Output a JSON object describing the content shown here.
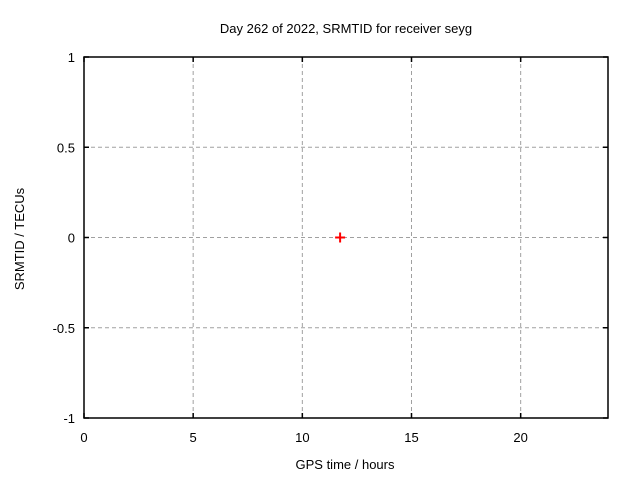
{
  "chart_data": {
    "type": "scatter",
    "title": "Day 262 of 2022, SRMTID for receiver seyg",
    "xlabel": "GPS time / hours",
    "ylabel": "SRMTID / TECUs",
    "xlim": [
      0,
      24
    ],
    "ylim": [
      -1,
      1
    ],
    "xticks": {
      "values": [
        0,
        5,
        10,
        15,
        20
      ],
      "labels": [
        "0",
        "5",
        "10",
        "15",
        "20"
      ]
    },
    "yticks": {
      "values": [
        -1,
        -0.5,
        0,
        0.5,
        1
      ],
      "labels": [
        "-1",
        "-0.5",
        "0",
        "0.5",
        "1"
      ]
    },
    "grid": true,
    "legend": "none",
    "series": [
      {
        "name": "SRMTID",
        "marker": "plus",
        "color": "#ff0000",
        "points": [
          {
            "x": 11.73,
            "y": 0.0
          }
        ]
      }
    ],
    "colors": {
      "background": "#ffffff",
      "border": "#000000",
      "grid": "#a0a0a0",
      "text": "#000000"
    }
  }
}
